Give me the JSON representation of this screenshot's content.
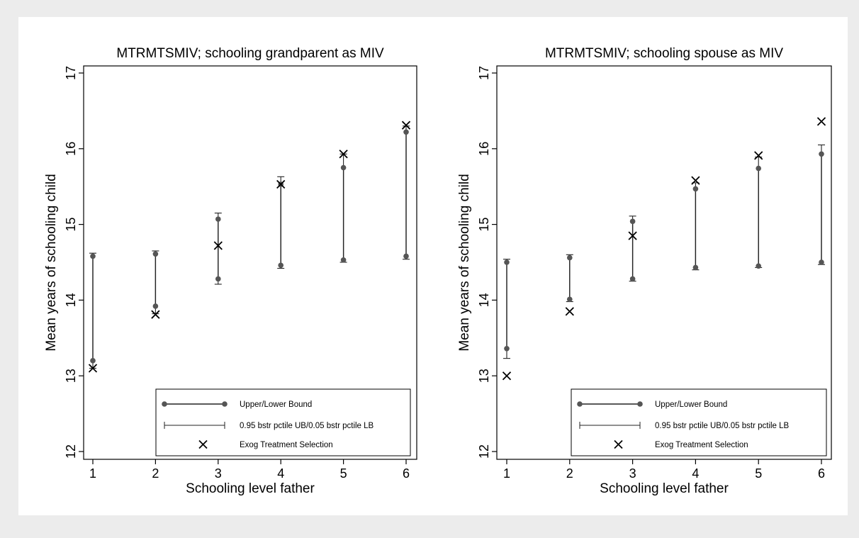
{
  "legend": {
    "bounds_label": "Upper/Lower Bound",
    "ci_label": "0.95 bstr pctile UB/0.05 bstr pctile LB",
    "exog_label": "Exog Treatment Selection"
  },
  "chart_data": [
    {
      "type": "scatter",
      "title": "MTRMTSMIV; schooling grandparent as MIV",
      "xlabel": "Schooling level father",
      "ylabel": "Mean years of schooling child",
      "xlim": [
        1,
        6
      ],
      "ylim": [
        12,
        17
      ],
      "xticks": [
        "1",
        "2",
        "3",
        "4",
        "5",
        "6"
      ],
      "yticks": [
        "12",
        "13",
        "14",
        "15",
        "16",
        "17"
      ],
      "grid": false,
      "legend_position": "bottom-right",
      "x": [
        1,
        2,
        3,
        4,
        5,
        6
      ],
      "series": [
        {
          "name": "Upper/Lower Bound",
          "lower": [
            13.2,
            13.92,
            14.28,
            14.46,
            14.53,
            14.58
          ],
          "upper": [
            14.58,
            14.61,
            15.07,
            15.53,
            15.75,
            16.22
          ]
        },
        {
          "name": "0.95 bstr pctile UB/0.05 bstr pctile LB",
          "lower": [
            13.1,
            13.82,
            14.21,
            14.42,
            14.5,
            14.54
          ],
          "upper": [
            14.62,
            14.65,
            15.15,
            15.63,
            15.93,
            16.3
          ]
        },
        {
          "name": "Exog Treatment Selection",
          "values": [
            13.1,
            13.81,
            14.72,
            15.53,
            15.93,
            16.31
          ]
        }
      ]
    },
    {
      "type": "scatter",
      "title": "MTRMTSMIV; schooling spouse as MIV",
      "xlabel": "Schooling level father",
      "ylabel": "Mean years of schooling child",
      "xlim": [
        1,
        6
      ],
      "ylim": [
        12,
        17
      ],
      "xticks": [
        "1",
        "2",
        "3",
        "4",
        "5",
        "6"
      ],
      "yticks": [
        "12",
        "13",
        "14",
        "15",
        "16",
        "17"
      ],
      "grid": false,
      "legend_position": "bottom-right",
      "x": [
        1,
        2,
        3,
        4,
        5,
        6
      ],
      "series": [
        {
          "name": "Upper/Lower Bound",
          "lower": [
            13.36,
            14.01,
            14.28,
            14.43,
            14.45,
            14.5
          ],
          "upper": [
            14.5,
            14.56,
            15.04,
            15.47,
            15.74,
            15.93
          ]
        },
        {
          "name": "0.95 bstr pctile UB/0.05 bstr pctile LB",
          "lower": [
            13.23,
            13.98,
            14.25,
            14.4,
            14.43,
            14.47
          ],
          "upper": [
            14.54,
            14.6,
            15.11,
            15.55,
            15.89,
            16.05
          ]
        },
        {
          "name": "Exog Treatment Selection",
          "values": [
            13.0,
            13.85,
            14.85,
            15.58,
            15.91,
            16.36
          ]
        }
      ]
    }
  ]
}
